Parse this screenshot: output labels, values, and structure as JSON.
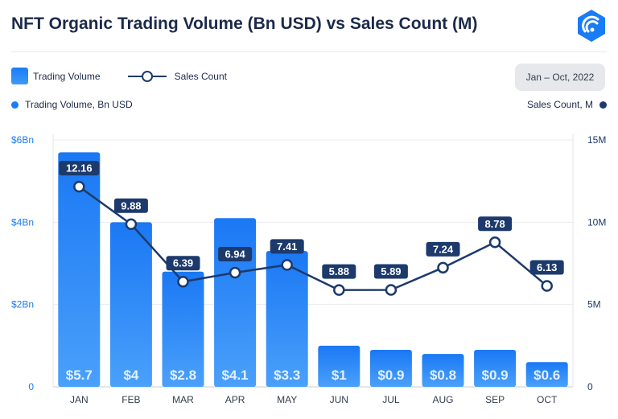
{
  "title": "NFT Organic Trading Volume (Bn USD) vs Sales Count (M)",
  "legend": {
    "bar_label": "Trading Volume",
    "line_label": "Sales Count"
  },
  "date_range": "Jan – Oct, 2022",
  "axis_notes": {
    "left": "Trading Volume, Bn USD",
    "right": "Sales Count, M"
  },
  "colors": {
    "bar": "#1a7cf5",
    "line": "#1c3a6b",
    "title": "#1c2a4a",
    "label_bg": "#1c3a6b"
  },
  "icons": {
    "logo": "radar-hexagon-icon"
  },
  "chart_data": {
    "type": "bar",
    "categories": [
      "JAN",
      "FEB",
      "MAR",
      "APR",
      "MAY",
      "JUN",
      "JUL",
      "AUG",
      "SEP",
      "OCT"
    ],
    "series": [
      {
        "name": "Trading Volume",
        "type": "bar",
        "axis": "left",
        "values": [
          5.7,
          4,
          2.8,
          4.1,
          3.3,
          1,
          0.9,
          0.8,
          0.9,
          0.6
        ],
        "labels": [
          "$5.7",
          "$4",
          "$2.8",
          "$4.1",
          "$3.3",
          "$1",
          "$0.9",
          "$0.8",
          "$0.9",
          "$0.6"
        ]
      },
      {
        "name": "Sales Count",
        "type": "line",
        "axis": "right",
        "values": [
          12.16,
          9.88,
          6.39,
          6.94,
          7.41,
          5.88,
          5.89,
          7.24,
          8.78,
          6.13
        ],
        "labels": [
          "12.16",
          "9.88",
          "6.39",
          "6.94",
          "7.41",
          "5.88",
          "5.89",
          "7.24",
          "8.78",
          "6.13"
        ]
      }
    ],
    "y_left": {
      "ticks": [
        0,
        2,
        4,
        6
      ],
      "tick_labels": [
        "0",
        "$2Bn",
        "$4Bn",
        "$6Bn"
      ],
      "range": [
        0,
        6
      ]
    },
    "y_right": {
      "ticks": [
        0,
        5,
        10,
        15
      ],
      "tick_labels": [
        "0",
        "5M",
        "10M",
        "15M"
      ],
      "range": [
        0,
        15
      ]
    },
    "grid": true
  }
}
